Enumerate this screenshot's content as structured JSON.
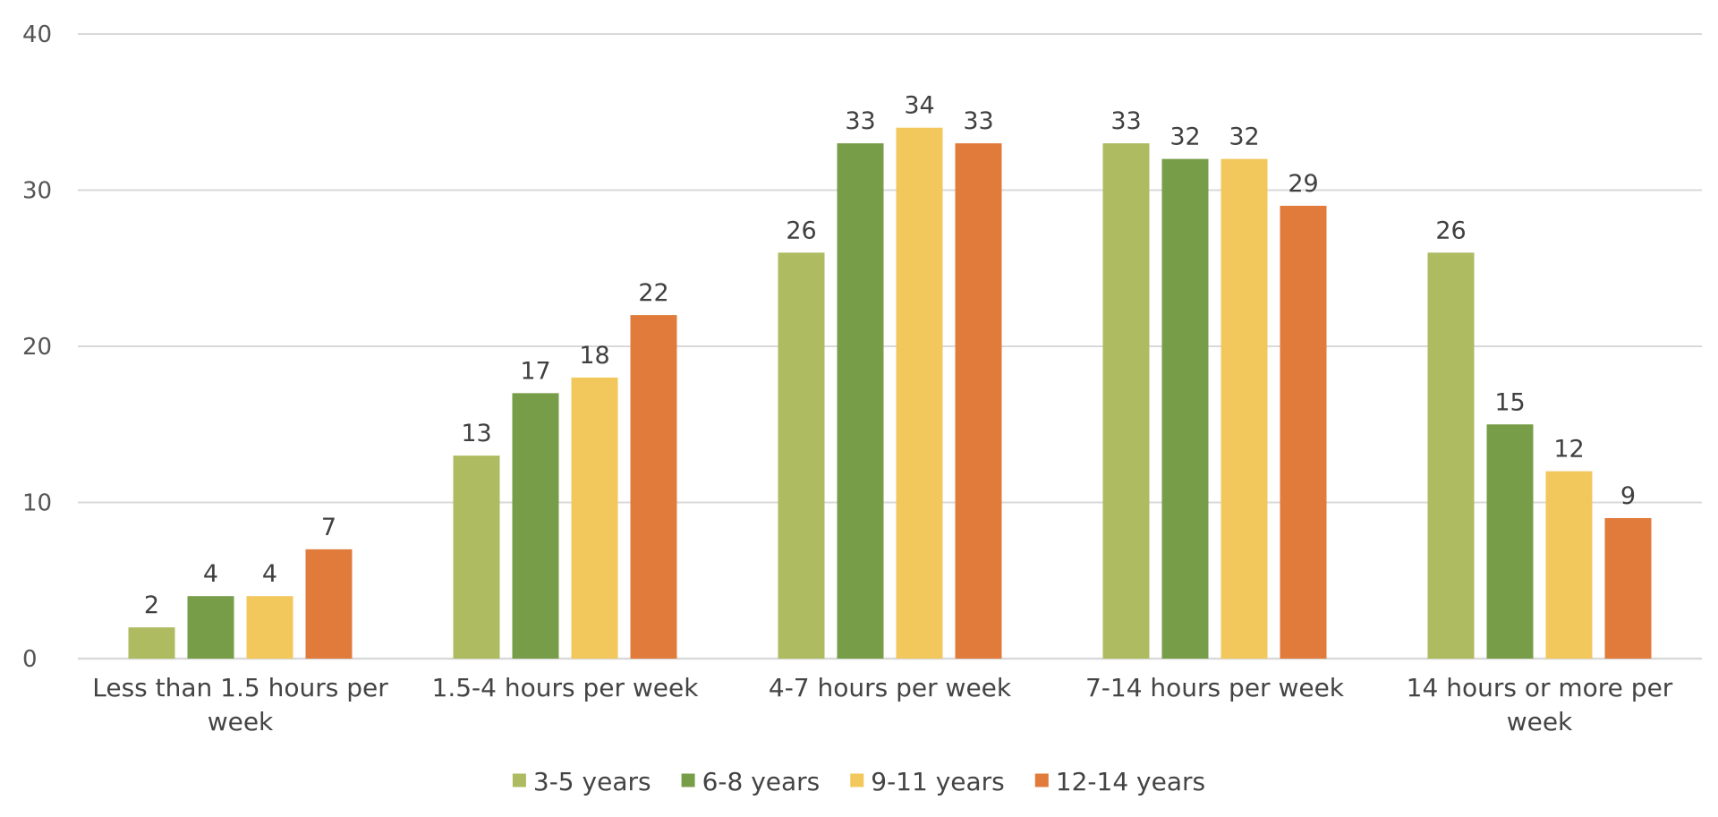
{
  "chart_data": {
    "type": "bar",
    "title": "",
    "xlabel": "",
    "ylabel": "",
    "ylim": [
      0,
      40
    ],
    "yticks": [
      0,
      10,
      20,
      30,
      40
    ],
    "grid": true,
    "legend_position": "bottom",
    "categories": [
      "Less than 1.5 hours per week",
      "1.5-4 hours per week",
      "4-7 hours per week",
      "7-14 hours per week",
      "14 hours or more per week"
    ],
    "series": [
      {
        "name": "3-5 years",
        "color": "#aebb60",
        "values": [
          2,
          13,
          26,
          33,
          26
        ]
      },
      {
        "name": "6-8 years",
        "color": "#789d49",
        "values": [
          4,
          17,
          33,
          32,
          15
        ]
      },
      {
        "name": "9-11 years",
        "color": "#f2c75b",
        "values": [
          4,
          18,
          34,
          32,
          12
        ]
      },
      {
        "name": "12-14 years",
        "color": "#e07b3b",
        "values": [
          7,
          22,
          33,
          29,
          9
        ]
      }
    ],
    "gridline_color": "#d9d9d9"
  }
}
